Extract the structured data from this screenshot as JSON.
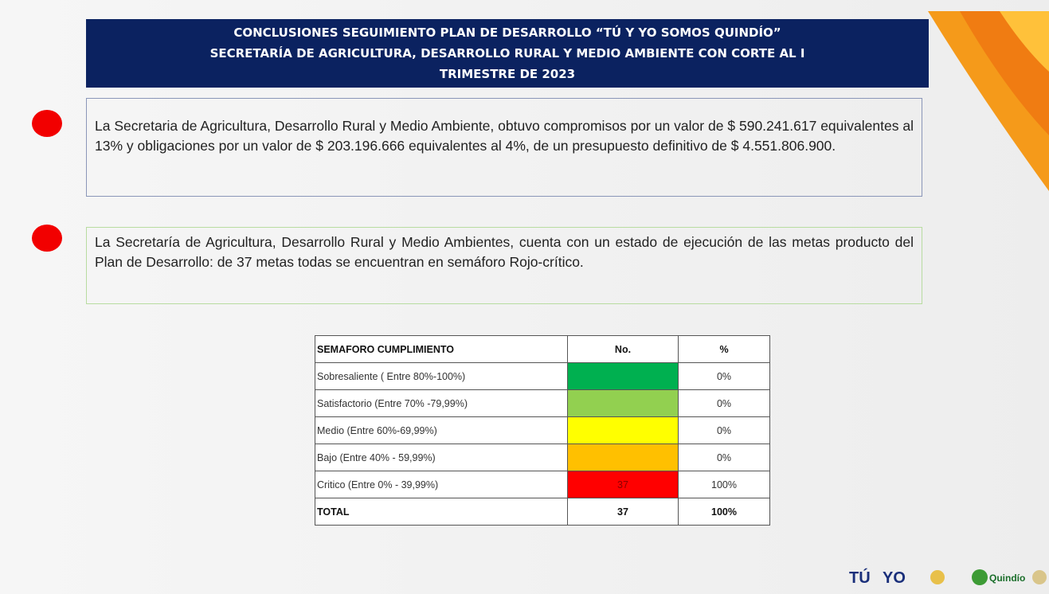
{
  "header": {
    "title_lines": [
      "CONCLUSIONES SEGUIMIENTO PLAN DE DESARROLLO “TÚ Y YO SOMOS QUINDÍO”",
      "SECRETARÍA  DE AGRICULTURA, DESARROLLO RURAL Y MEDIO AMBIENTE  CON CORTE AL I",
      "TRIMESTRE DE 2023"
    ]
  },
  "bullets": [
    "La Secretaria de Agricultura, Desarrollo Rural y Medio Ambiente, obtuvo compromisos por un valor de $ 590.241.617 equivalentes al 13% y obligaciones por un valor de $ 203.196.666 equivalentes al 4%, de un presupuesto definitivo de $ 4.551.806.900.",
    "La Secretaría de Agricultura, Desarrollo Rural y Medio Ambientes, cuenta con un estado de ejecución de las metas producto del Plan de Desarrollo: de 37 metas todas se encuentran en semáforo Rojo-crítico."
  ],
  "table": {
    "headers": [
      "SEMAFORO CUMPLIMIENTO",
      "No.",
      "%"
    ],
    "rows": [
      [
        "Sobresaliente  ( Entre 80%-100%)",
        null,
        "0%"
      ],
      [
        "Satisfactorio (Entre 70% -79,99%)",
        null,
        "0%"
      ],
      [
        "Medio (Entre 60%-69,99%)",
        null,
        "0%"
      ],
      [
        "Bajo (Entre 40% - 59,99%)",
        null,
        "0%"
      ],
      [
        "Critico (Entre 0% - 39,99%)",
        "37",
        "100%"
      ]
    ],
    "total": [
      "TOTAL",
      "37",
      "100%"
    ]
  },
  "footer": {
    "logo_left": "TÚ",
    "logo_right": "YO",
    "logo_quindio": "Quindío"
  }
}
